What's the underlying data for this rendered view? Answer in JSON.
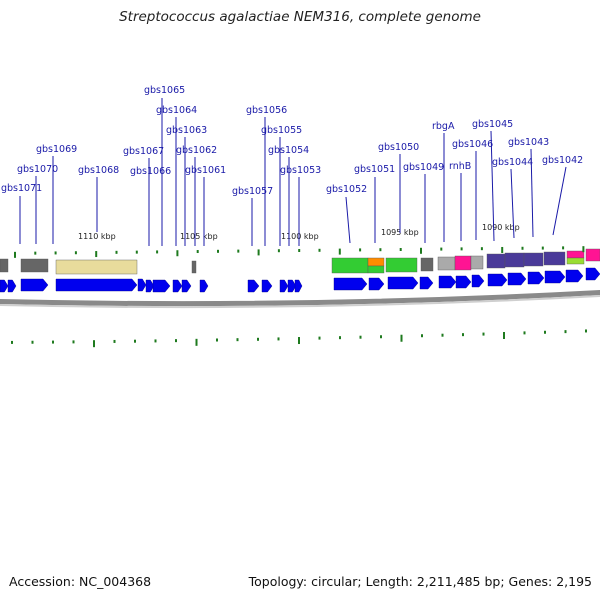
{
  "title": "Streptococcus agalactiae NEM316, complete genome",
  "footer": {
    "accession": "Accession: NC_004368",
    "topology": "Topology: circular; Length: 2,211,485 bp; Genes: 2,195"
  },
  "colors": {
    "forward_gene": "#0000ee",
    "label_line": "#1a1aa8",
    "tick": "#1e7a1e",
    "backbone": "#8a8a8a"
  },
  "kbp_labels": [
    "1110 kbp",
    "1105 kbp",
    "1100 kbp",
    "1095 kbp",
    "1090 kbp"
  ],
  "gene_labels": [
    "gbs1071",
    "gbs1070",
    "gbs1069",
    "gbs1068",
    "gbs1067",
    "gbs1066",
    "gbs1065",
    "gbs1064",
    "gbs1063",
    "gbs1062",
    "gbs1061",
    "gbs1057",
    "gbs1056",
    "gbs1055",
    "gbs1054",
    "gbs1053",
    "gbs1052",
    "gbs1051",
    "gbs1050",
    "gbs1049",
    "rbgA",
    "rnhB",
    "gbs1046",
    "gbs1045",
    "gbs1044",
    "gbs1043",
    "gbs1042"
  ]
}
